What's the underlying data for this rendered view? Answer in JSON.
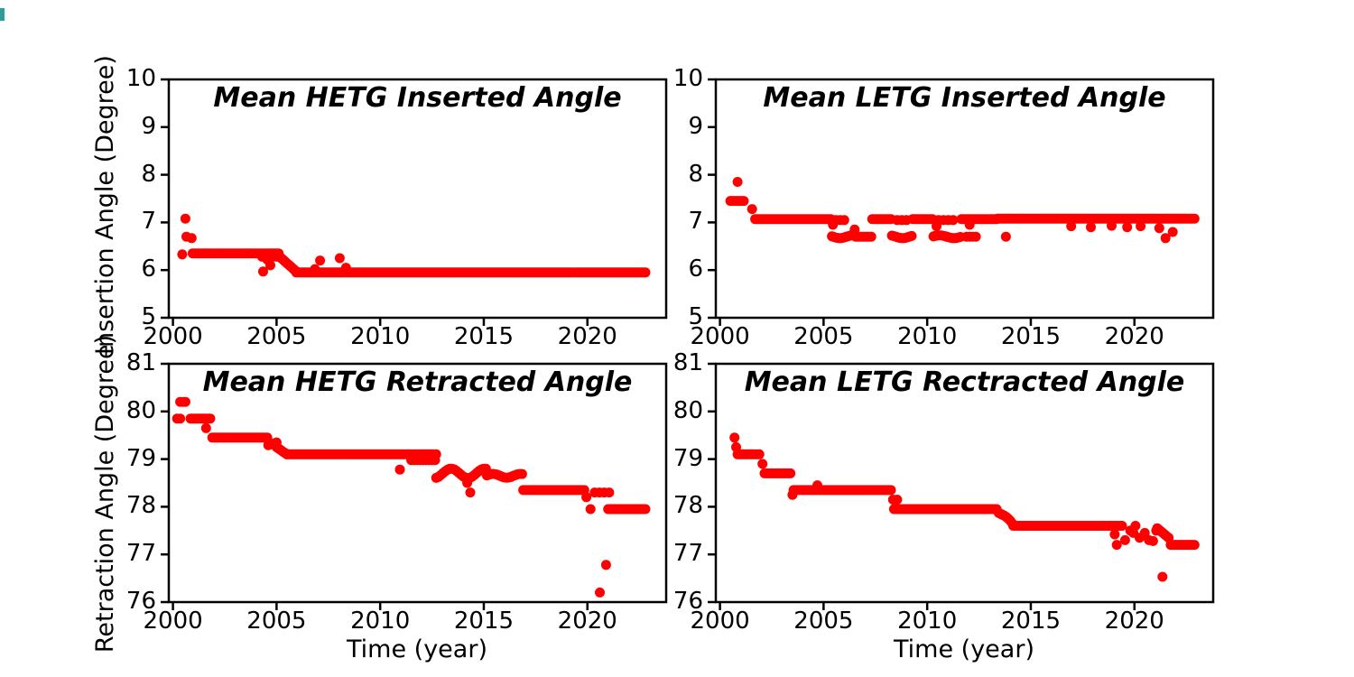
{
  "xlabel": "Time (year)",
  "colors": {
    "dot": "#ff0000",
    "axis": "#000000",
    "background": "#ffffff",
    "edge_artifact": "#2f9e99"
  },
  "chart_data": [
    {
      "id": "hetg-inserted",
      "type": "scatter",
      "title": "Mean HETG Inserted Angle",
      "ylabel": "Insertion Angle (Degree)",
      "xlim": [
        1999.8,
        2023.8
      ],
      "ylim": [
        5,
        10
      ],
      "xticks": [
        2000,
        2005,
        2010,
        2015,
        2020
      ],
      "yticks": [
        5,
        6,
        7,
        8,
        9,
        10
      ],
      "grid": false,
      "legend": null,
      "segments": [
        {
          "x0": 2000.95,
          "x1": 2005.1,
          "v": 6.35
        },
        {
          "x0": 2004.3,
          "x1": 2005.0,
          "v": 6.28,
          "spacing": 0.18
        },
        {
          "x0": 2005.1,
          "x1": 2005.95,
          "v0": 6.3,
          "v1": 5.97,
          "spacing": 0.07
        },
        {
          "x0": 2005.95,
          "x1": 2022.8,
          "v": 5.95
        }
      ],
      "points": [
        [
          2000.45,
          6.33
        ],
        [
          2000.6,
          7.08
        ],
        [
          2000.65,
          6.7
        ],
        [
          2000.9,
          6.67
        ],
        [
          2004.35,
          5.97
        ],
        [
          2004.55,
          6.22
        ],
        [
          2004.7,
          6.1
        ],
        [
          2006.85,
          6.02
        ],
        [
          2007.1,
          6.2
        ],
        [
          2008.05,
          6.25
        ],
        [
          2008.35,
          6.05
        ]
      ]
    },
    {
      "id": "letg-inserted",
      "type": "scatter",
      "title": "Mean LETG Inserted Angle",
      "ylabel": null,
      "xlim": [
        1999.8,
        2023.8
      ],
      "ylim": [
        5,
        10
      ],
      "xticks": [
        2000,
        2005,
        2010,
        2015,
        2020
      ],
      "yticks": [
        5,
        6,
        7,
        8,
        9,
        10
      ],
      "grid": false,
      "legend": null,
      "segments": [
        {
          "x0": 2000.5,
          "x1": 2001.15,
          "v": 7.45
        },
        {
          "x0": 2001.7,
          "x1": 2005.35,
          "v": 7.07
        },
        {
          "x0": 2005.4,
          "x1": 2006.35,
          "v": 6.7,
          "jitter": 0.03
        },
        {
          "x0": 2005.6,
          "x1": 2006.0,
          "v": 7.05,
          "spacing": 0.18
        },
        {
          "x0": 2006.55,
          "x1": 2007.3,
          "v": 6.7
        },
        {
          "x0": 2007.35,
          "x1": 2008.25,
          "v": 7.07
        },
        {
          "x0": 2008.3,
          "x1": 2009.25,
          "v": 6.7,
          "jitter": 0.03
        },
        {
          "x0": 2008.55,
          "x1": 2009.0,
          "v": 7.05,
          "spacing": 0.2
        },
        {
          "x0": 2009.3,
          "x1": 2010.25,
          "v": 7.07
        },
        {
          "x0": 2010.3,
          "x1": 2011.6,
          "v": 6.7,
          "jitter": 0.03
        },
        {
          "x0": 2010.55,
          "x1": 2011.25,
          "v": 7.05,
          "spacing": 0.25
        },
        {
          "x0": 2011.65,
          "x1": 2013.35,
          "v": 7.07
        },
        {
          "x0": 2011.9,
          "x1": 2012.35,
          "v": 6.7,
          "spacing": 0.15
        },
        {
          "x0": 2013.4,
          "x1": 2022.9,
          "v": 7.08
        }
      ],
      "points": [
        [
          2000.85,
          7.85
        ],
        [
          2001.55,
          7.28
        ],
        [
          2005.45,
          6.95
        ],
        [
          2006.5,
          6.85
        ],
        [
          2010.45,
          6.92
        ],
        [
          2012.05,
          6.95
        ],
        [
          2013.8,
          6.7
        ],
        [
          2016.95,
          6.92
        ],
        [
          2017.9,
          6.9
        ],
        [
          2018.9,
          6.93
        ],
        [
          2019.65,
          6.9
        ],
        [
          2020.3,
          6.92
        ],
        [
          2021.2,
          6.88
        ],
        [
          2021.5,
          6.67
        ],
        [
          2021.85,
          6.8
        ]
      ]
    },
    {
      "id": "hetg-retracted",
      "type": "scatter",
      "title": "Mean HETG Retracted Angle",
      "ylabel": "Retraction Angle (Degree)",
      "xlim": [
        1999.8,
        2023.8
      ],
      "ylim": [
        76,
        81
      ],
      "xticks": [
        2000,
        2005,
        2010,
        2015,
        2020
      ],
      "yticks": [
        76,
        77,
        78,
        79,
        80,
        81
      ],
      "grid": false,
      "legend": null,
      "segments": [
        {
          "x0": 2000.35,
          "x1": 2000.6,
          "v": 80.2,
          "spacing": 0.12
        },
        {
          "x0": 2000.2,
          "x1": 2000.35,
          "v": 79.85,
          "spacing": 0.14
        },
        {
          "x0": 2000.85,
          "x1": 2001.8,
          "v": 79.85
        },
        {
          "x0": 2001.9,
          "x1": 2004.55,
          "v": 79.45
        },
        {
          "x0": 2004.6,
          "x1": 2005.0,
          "v": 79.32,
          "spacing": 0.13,
          "jitter": 0.05
        },
        {
          "x0": 2005.0,
          "x1": 2005.5,
          "v0": 79.25,
          "v1": 79.1,
          "spacing": 0.09
        },
        {
          "x0": 2005.5,
          "x1": 2012.7,
          "v": 79.1
        },
        {
          "x0": 2011.5,
          "x1": 2012.65,
          "v": 78.98,
          "spacing": 0.14
        },
        {
          "x0": 2012.7,
          "x1": 2015.1,
          "v": 78.7,
          "spacing": 0.11,
          "jitter": 0.1
        },
        {
          "x0": 2015.15,
          "x1": 2016.85,
          "v": 78.65,
          "jitter": 0.04
        },
        {
          "x0": 2016.9,
          "x1": 2019.85,
          "v": 78.35
        },
        {
          "x0": 2020.35,
          "x1": 2021.05,
          "v": 78.3,
          "spacing": 0.22
        },
        {
          "x0": 2021.0,
          "x1": 2022.8,
          "v": 77.95
        }
      ],
      "points": [
        [
          2001.6,
          79.65
        ],
        [
          2010.95,
          78.78
        ],
        [
          2014.2,
          78.5
        ],
        [
          2014.35,
          78.3
        ],
        [
          2019.95,
          78.2
        ],
        [
          2020.15,
          77.95
        ],
        [
          2020.6,
          76.2
        ],
        [
          2020.9,
          76.78
        ]
      ]
    },
    {
      "id": "letg-retracted",
      "type": "scatter",
      "title": "Mean LETG Rectracted Angle",
      "ylabel": null,
      "xlim": [
        1999.8,
        2023.8
      ],
      "ylim": [
        76,
        81
      ],
      "xticks": [
        2000,
        2005,
        2010,
        2015,
        2020
      ],
      "yticks": [
        76,
        77,
        78,
        79,
        80,
        81
      ],
      "grid": false,
      "legend": null,
      "segments": [
        {
          "x0": 2000.85,
          "x1": 2001.9,
          "v": 79.1
        },
        {
          "x0": 2002.15,
          "x1": 2003.4,
          "v": 78.7
        },
        {
          "x0": 2003.55,
          "x1": 2008.25,
          "v": 78.35
        },
        {
          "x0": 2008.4,
          "x1": 2013.35,
          "v": 77.95
        },
        {
          "x0": 2013.45,
          "x1": 2014.1,
          "v0": 77.9,
          "v1": 77.62,
          "spacing": 0.09,
          "jitter": 0.05
        },
        {
          "x0": 2014.15,
          "x1": 2019.4,
          "v": 77.6
        },
        {
          "x0": 2021.1,
          "x1": 2021.65,
          "v0": 77.55,
          "v1": 77.35,
          "spacing": 0.09
        },
        {
          "x0": 2021.75,
          "x1": 2022.9,
          "v": 77.2
        }
      ],
      "points": [
        [
          2000.7,
          79.45
        ],
        [
          2000.78,
          79.25
        ],
        [
          2002.05,
          78.9
        ],
        [
          2003.5,
          78.25
        ],
        [
          2004.7,
          78.45
        ],
        [
          2008.35,
          78.15
        ],
        [
          2008.55,
          78.15
        ],
        [
          2019.05,
          77.42
        ],
        [
          2019.15,
          77.2
        ],
        [
          2019.55,
          77.3
        ],
        [
          2019.8,
          77.5
        ],
        [
          2019.95,
          77.45
        ],
        [
          2020.05,
          77.6
        ],
        [
          2020.25,
          77.35
        ],
        [
          2020.5,
          77.45
        ],
        [
          2020.7,
          77.3
        ],
        [
          2020.9,
          77.28
        ],
        [
          2021.05,
          77.5
        ],
        [
          2021.35,
          76.53
        ]
      ]
    }
  ]
}
